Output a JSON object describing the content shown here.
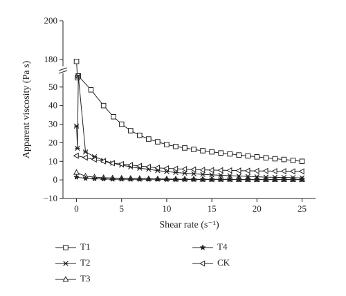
{
  "chart_data": {
    "type": "line",
    "xlabel": "Shear rate (s⁻¹)",
    "ylabel": "Apparent viscosity (Pa s)",
    "xlim": [
      -1.5,
      26.5
    ],
    "xticks": [
      0,
      5,
      10,
      15,
      20,
      25
    ],
    "ylim_lower": [
      -10,
      57
    ],
    "yticks_lower": [
      -10,
      0,
      10,
      20,
      30,
      40,
      50
    ],
    "ylim_upper": [
      175,
      200
    ],
    "yticks_upper": [
      180,
      200
    ],
    "axis_break": true,
    "grid": false,
    "legend_position": "bottom",
    "series": [
      {
        "name": "T1",
        "marker": "square",
        "x": [
          0,
          0.1,
          0.2,
          1.6,
          3.0,
          4.1,
          5.0,
          6.0,
          7.0,
          8.0,
          9.0,
          10.0,
          11.0,
          12.0,
          13.0,
          14.0,
          15.0,
          16.0,
          17.0,
          18.0,
          19.0,
          20.0,
          21.0,
          22.0,
          23.0,
          24.0,
          25.0
        ],
        "y": [
          179,
          55,
          56,
          48.5,
          40,
          34,
          30,
          26.5,
          24,
          22,
          20.5,
          19,
          18,
          17.2,
          16.4,
          15.7,
          15.1,
          14.5,
          14,
          13.4,
          12.9,
          12.4,
          11.9,
          11.4,
          11,
          10.5,
          10
        ]
      },
      {
        "name": "T2",
        "marker": "x-star",
        "x": [
          0,
          0.1,
          0.2,
          1.0,
          2.0,
          3.0,
          4.0,
          5.0,
          6.0,
          7.0,
          8.0,
          9.0,
          10.0,
          11.0,
          12.0,
          13.0,
          14.0,
          15.0,
          16.0,
          17.0,
          18.0,
          19.0,
          20.0,
          21.0,
          22.0,
          23.0,
          24.0,
          25.0
        ],
        "y": [
          29,
          17,
          56,
          15,
          12.5,
          10.5,
          9,
          8,
          7,
          6.3,
          5.7,
          5,
          4.5,
          4,
          3.6,
          3.3,
          3,
          2.7,
          2.5,
          2.3,
          2.1,
          1.9,
          1.7,
          1.5,
          1.4,
          1.3,
          1.2,
          1.1
        ]
      },
      {
        "name": "T3",
        "marker": "triangle",
        "x": [
          0,
          1.0,
          2.0,
          3.0,
          4.0,
          5.0,
          6.0,
          7.0,
          8.0,
          9.0,
          10.0,
          11.0,
          12.0,
          13.0,
          14.0,
          15.0,
          16.0,
          17.0,
          18.0,
          19.0,
          20.0,
          21.0,
          22.0,
          23.0,
          24.0,
          25.0
        ],
        "y": [
          4,
          2,
          1.5,
          1.2,
          1,
          0.9,
          0.8,
          0.7,
          0.6,
          0.5,
          0.5,
          0.4,
          0.4,
          0.4,
          0.3,
          0.3,
          0.3,
          0.3,
          0.2,
          0.2,
          0.2,
          0.2,
          0.2,
          0.2,
          0.2,
          0.2
        ]
      },
      {
        "name": "T4",
        "marker": "star",
        "x": [
          0,
          1.0,
          2.0,
          3.0,
          4.0,
          5.0,
          6.0,
          7.0,
          8.0,
          9.0,
          10.0,
          11.0,
          12.0,
          13.0,
          14.0,
          15.0,
          16.0,
          17.0,
          18.0,
          19.0,
          20.0,
          21.0,
          22.0,
          23.0,
          24.0,
          25.0
        ],
        "y": [
          1.5,
          0.8,
          0.6,
          0.5,
          0.4,
          0.4,
          0.3,
          0.3,
          0.3,
          0.3,
          0.2,
          0.2,
          0.2,
          0.2,
          0.2,
          0.2,
          0.2,
          0.2,
          0.2,
          0.2,
          0.2,
          0.2,
          0.2,
          0.2,
          0.2,
          0.2
        ]
      },
      {
        "name": "CK",
        "marker": "triangle-left",
        "x": [
          0,
          1.0,
          2.0,
          3.0,
          4.0,
          5.0,
          6.0,
          7.0,
          8.0,
          9.0,
          10.0,
          11.0,
          12.0,
          13.0,
          14.0,
          15.0,
          16.0,
          17.0,
          18.0,
          19.0,
          20.0,
          21.0,
          22.0,
          23.0,
          24.0,
          25.0
        ],
        "y": [
          13,
          12,
          11,
          10,
          9,
          8.5,
          8,
          7.5,
          7,
          6.5,
          6.2,
          6,
          5.8,
          5.6,
          5.4,
          5.3,
          5.2,
          5.1,
          5,
          4.9,
          4.8,
          4.8,
          4.7,
          4.7,
          4.6,
          4.6
        ]
      }
    ]
  }
}
